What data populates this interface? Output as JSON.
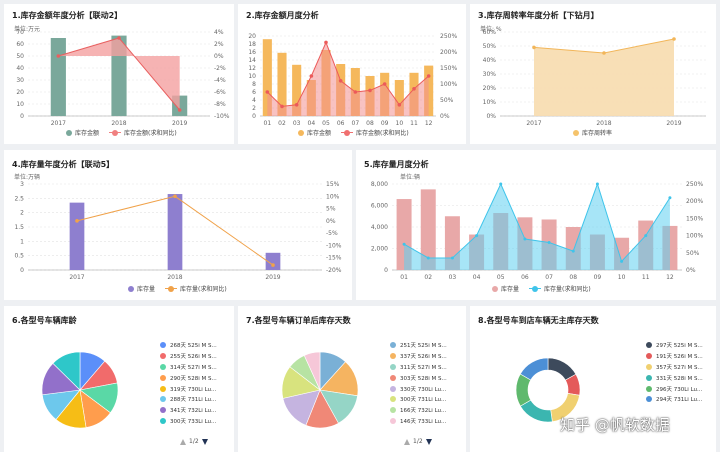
{
  "colors": {
    "teal": "#7aa89b",
    "salmon": "#f08080",
    "orange": "#f5b85c",
    "wheat": "#f7dcae",
    "purple": "#8e7fcf",
    "pink": "#e8a8a8",
    "cyan": "#5fd0f0"
  },
  "chart1": {
    "title": "1.库存金额年度分析【联动2】",
    "unit": "单位:万元",
    "legend": [
      "库存金额",
      "库存金额(求和同比)"
    ],
    "ytl": [
      "0",
      "10",
      "20",
      "30",
      "40",
      "50",
      "60",
      "70"
    ],
    "ytr": [
      "-10%",
      "-8%",
      "-6%",
      "-4%",
      "-2%",
      "0%",
      "2%",
      "4%"
    ]
  },
  "chart2": {
    "title": "2.库存金额月度分析",
    "legend": [
      "库存金额",
      "库存金额(求和同比)"
    ],
    "ytl": [
      "0",
      "2",
      "4",
      "6",
      "8",
      "10",
      "12",
      "14",
      "16",
      "18",
      "20"
    ],
    "ytr": [
      "0%",
      "50%",
      "100%",
      "150%",
      "200%",
      "250%"
    ]
  },
  "chart3": {
    "title": "3.库存周转率年度分析【下钻月】",
    "unit": "单位: %",
    "legend": [
      "库存周转率"
    ],
    "ytl": [
      "0%",
      "10%",
      "20%",
      "30%",
      "40%",
      "50%",
      "60%"
    ]
  },
  "chart4": {
    "title": "4.库存量年度分析【联动5】",
    "unit": "单位:万辆",
    "legend": [
      "库存量",
      "库存量(求和同比)"
    ],
    "ytl": [
      "0",
      "0.5",
      "1",
      "1.5",
      "2",
      "2.5",
      "3"
    ],
    "ytr": [
      "-20%",
      "-15%",
      "-10%",
      "-5%",
      "0%",
      "5%",
      "10%",
      "15%"
    ]
  },
  "chart5": {
    "title": "5.库存量月度分析",
    "unit": "单位:辆",
    "legend": [
      "库存量",
      "库存量(求和同比)"
    ],
    "ytl": [
      "0",
      "2,000",
      "4,000",
      "6,000",
      "8,000"
    ],
    "ytr": [
      "0%",
      "50%",
      "100%",
      "150%",
      "200%",
      "250%"
    ]
  },
  "chart6": {
    "title": "6.各型号车辆库龄",
    "pager": "1/2"
  },
  "chart7": {
    "title": "7.各型号车辆订单后库存天数",
    "pager": "1/2"
  },
  "chart8": {
    "title": "8.各型号车到店车辆无主库存天数",
    "watermark": "知乎 @帆软数据"
  },
  "chart_data": [
    {
      "type": "bar",
      "title": "1.库存金额年度分析【联动2】",
      "ylabel": "单位:万元",
      "categories": [
        "2017",
        "2018",
        "2019"
      ],
      "ylim": [
        0,
        70
      ],
      "ylim_right": [
        -10,
        4
      ],
      "series": [
        {
          "name": "库存金额",
          "type": "bar",
          "values": [
            65,
            67,
            17
          ]
        },
        {
          "name": "库存金额(求和同比)",
          "type": "area",
          "axis": "right",
          "values": [
            0,
            3,
            -9
          ]
        }
      ]
    },
    {
      "type": "bar",
      "title": "2.库存金额月度分析",
      "categories": [
        "01",
        "02",
        "03",
        "04",
        "05",
        "06",
        "07",
        "08",
        "09",
        "10",
        "11",
        "12"
      ],
      "ylim": [
        0,
        20
      ],
      "ylim_right": [
        0,
        250
      ],
      "series": [
        {
          "name": "库存金额",
          "type": "bar",
          "values": [
            19.2,
            15.8,
            12.8,
            9.0,
            16.5,
            13.0,
            12.0,
            10.0,
            10.8,
            9.0,
            10.8,
            12.6
          ]
        },
        {
          "name": "库存金额(求和同比)",
          "type": "area",
          "axis": "right",
          "values": [
            75,
            30,
            35,
            125,
            230,
            110,
            75,
            80,
            100,
            35,
            85,
            125
          ]
        }
      ]
    },
    {
      "type": "area",
      "title": "3.库存周转率年度分析【下钻月】",
      "ylabel": "单位: %",
      "categories": [
        "2017",
        "2018",
        "2019"
      ],
      "ylim": [
        0,
        60
      ],
      "series": [
        {
          "name": "库存周转率",
          "values": [
            49,
            45,
            55
          ]
        }
      ]
    },
    {
      "type": "bar",
      "title": "4.库存量年度分析【联动5】",
      "ylabel": "单位:万辆",
      "categories": [
        "2017",
        "2018",
        "2019"
      ],
      "ylim": [
        0,
        3
      ],
      "ylim_right": [
        -20,
        15
      ],
      "series": [
        {
          "name": "库存量",
          "type": "bar",
          "values": [
            2.35,
            2.65,
            0.6
          ]
        },
        {
          "name": "库存量(求和同比)",
          "type": "line",
          "axis": "right",
          "values": [
            0,
            10,
            -18
          ]
        }
      ]
    },
    {
      "type": "bar",
      "title": "5.库存量月度分析",
      "ylabel": "单位:辆",
      "categories": [
        "01",
        "02",
        "03",
        "04",
        "05",
        "06",
        "07",
        "08",
        "09",
        "10",
        "11",
        "12"
      ],
      "ylim": [
        0,
        8000
      ],
      "ylim_right": [
        0,
        250
      ],
      "series": [
        {
          "name": "库存量",
          "type": "bar",
          "values": [
            6600,
            7500,
            5000,
            3300,
            5300,
            4900,
            4700,
            4000,
            3300,
            3000,
            4600,
            4100
          ]
        },
        {
          "name": "库存量(求和同比)",
          "type": "area",
          "axis": "right",
          "values": [
            75,
            35,
            35,
            100,
            250,
            90,
            80,
            55,
            250,
            25,
            100,
            210
          ]
        }
      ]
    },
    {
      "type": "pie",
      "title": "6.各型号车辆库龄",
      "labels": [
        "268天 525i M S...",
        "255天 526i M S...",
        "314天 527i M S...",
        "290天 528i M S...",
        "319天 730Li Lu...",
        "288天 731Li Lu...",
        "341天 732Li Lu...",
        "300天 733Li Lu..."
      ],
      "values": [
        268,
        255,
        314,
        290,
        319,
        288,
        341,
        300
      ],
      "colors": [
        "#5b8ff9",
        "#f16b6b",
        "#5ad8a6",
        "#ff9d4d",
        "#f6bd16",
        "#6dc8ec",
        "#9270ca",
        "#2ec7c9"
      ]
    },
    {
      "type": "pie",
      "title": "7.各型号车辆订单后库存天数",
      "labels": [
        "251天 525i M S...",
        "337天 526i M S...",
        "311天 527i M S...",
        "303天 528i M S...",
        "330天 730Li Lu...",
        "300天 731Li Lu...",
        "166天 732Li Lu...",
        "146天 733Li Lu..."
      ],
      "values": [
        251,
        337,
        311,
        303,
        330,
        300,
        166,
        146
      ],
      "colors": [
        "#7ab0d6",
        "#f5b461",
        "#95d5c6",
        "#f08877",
        "#c5b4e0",
        "#d8e37e",
        "#b7e3a3",
        "#f6c7d8"
      ]
    },
    {
      "type": "pie",
      "title": "8.各型号车到店车辆无主库存天数",
      "donut": true,
      "labels": [
        "297天 525i M S...",
        "191天 526i M S...",
        "357天 527i M S...",
        "331天 528i M S...",
        "296天 730Li Lu...",
        "294天 731Li Lu..."
      ],
      "values": [
        297,
        191,
        357,
        331,
        296,
        294
      ],
      "colors": [
        "#3d4a5c",
        "#e45a5a",
        "#f0d070",
        "#3bb6b0",
        "#5fb96d",
        "#4c8fd6"
      ]
    }
  ]
}
